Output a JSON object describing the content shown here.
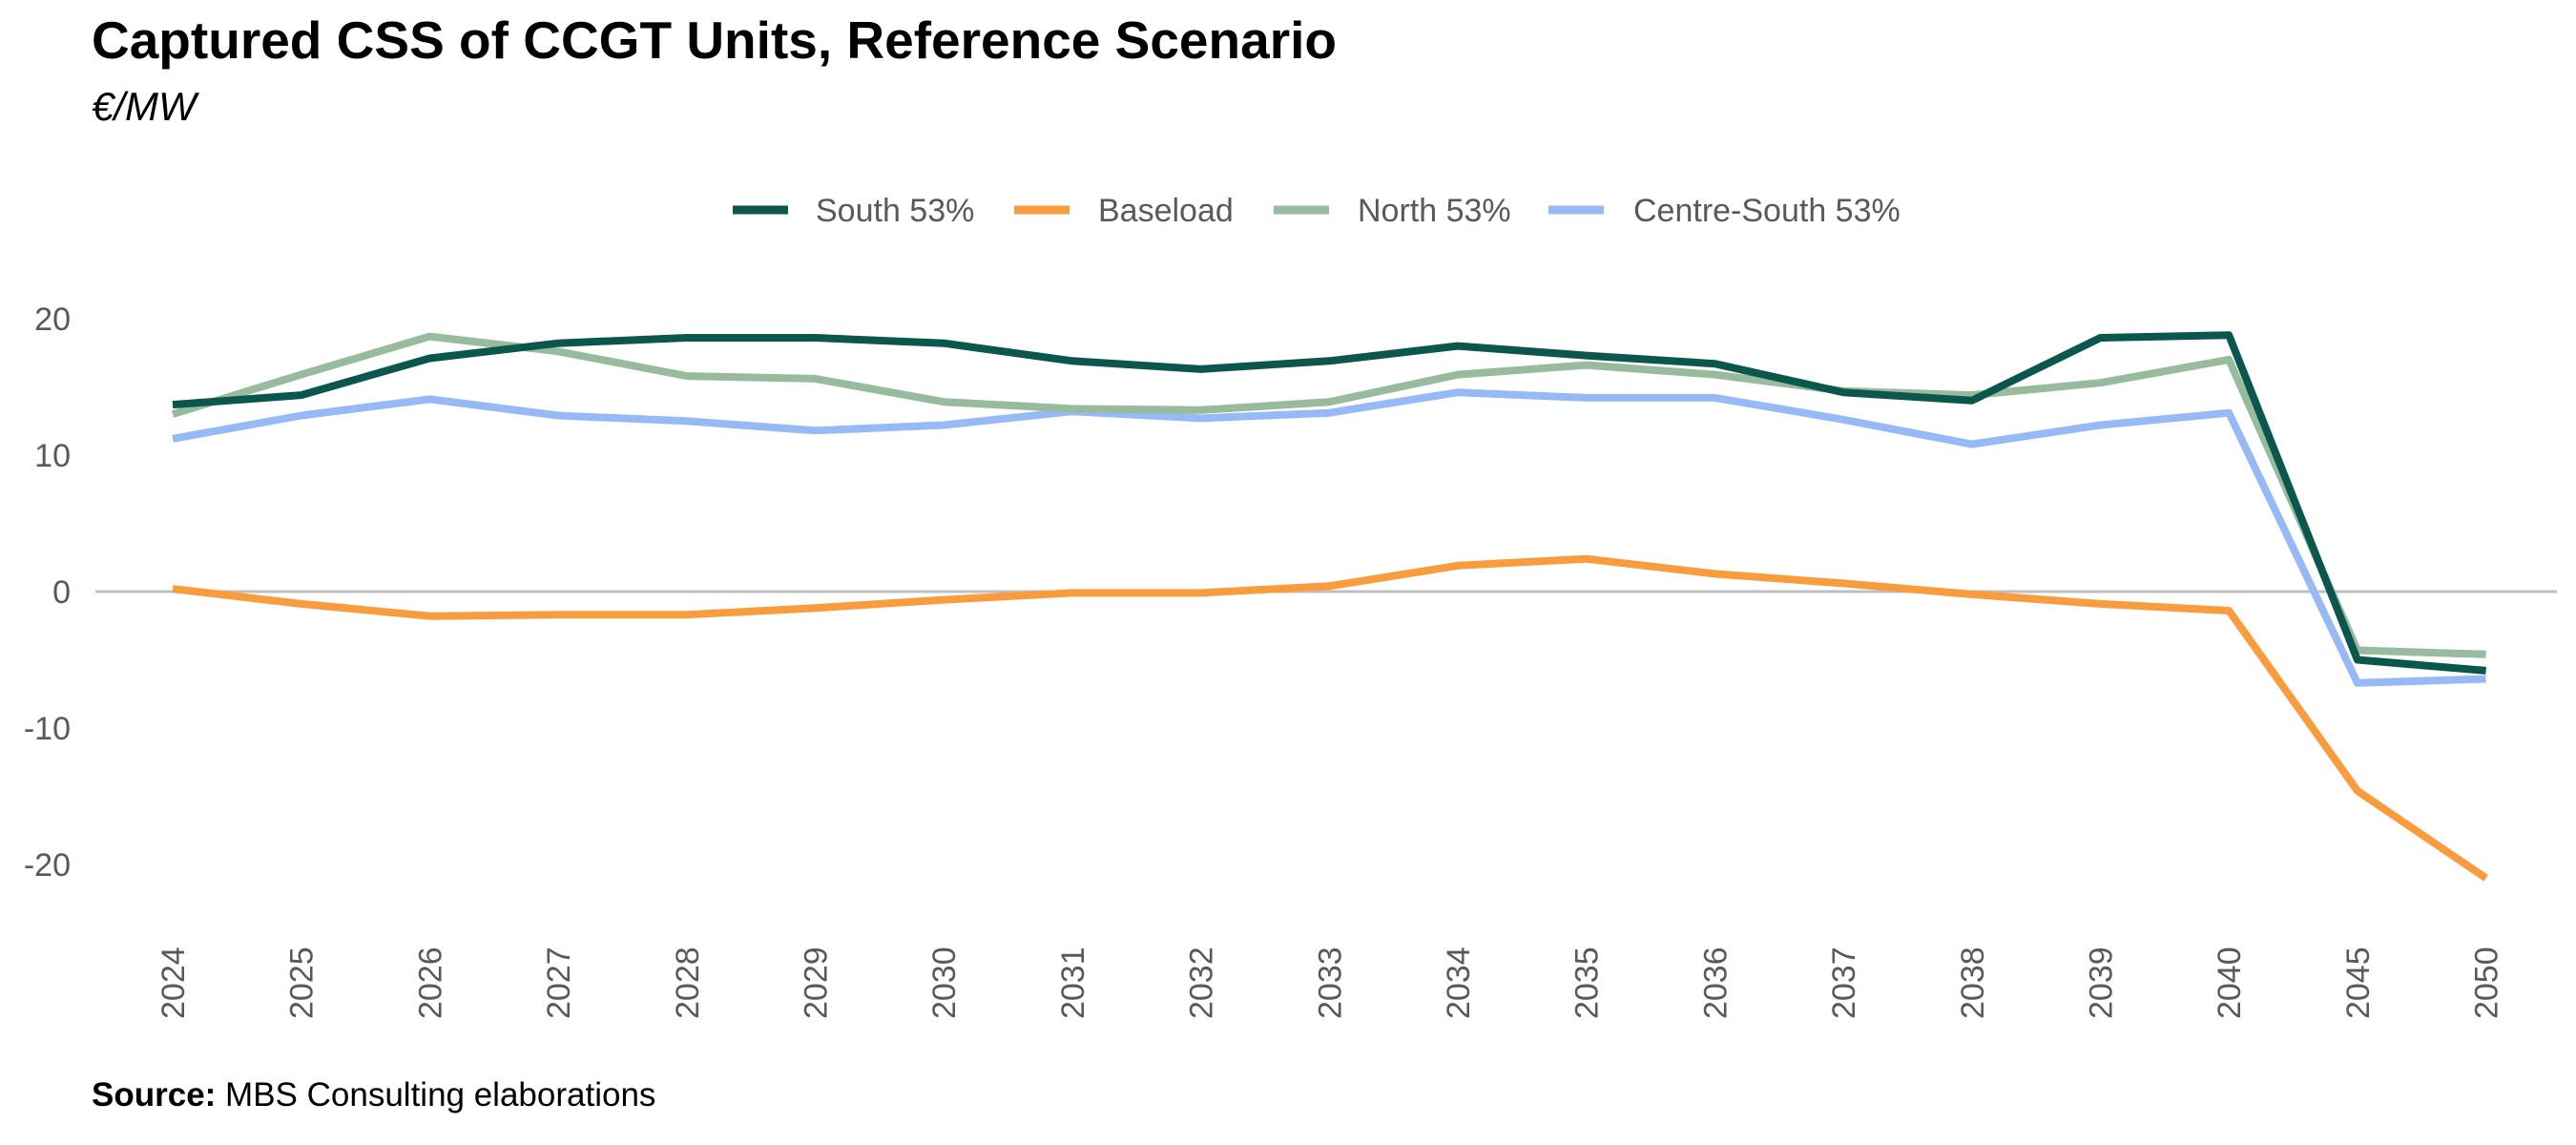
{
  "title": "Captured CSS of CCGT Units, Reference Scenario",
  "subtitle": "€/MW",
  "source": {
    "label": "Source:",
    "text": "MBS Consulting elaborations"
  },
  "chart_data": {
    "type": "line",
    "title": "Captured CSS of CCGT Units, Reference Scenario",
    "subtitle": "€/MW",
    "xlabel": "",
    "ylabel": "",
    "categories": [
      "2024",
      "2025",
      "2026",
      "2027",
      "2028",
      "2029",
      "2030",
      "2031",
      "2032",
      "2033",
      "2034",
      "2035",
      "2036",
      "2037",
      "2038",
      "2039",
      "2040",
      "2045",
      "2050"
    ],
    "ylim": [
      -25,
      25
    ],
    "yticks": [
      -20,
      -10,
      0,
      10,
      20
    ],
    "grid": false,
    "zero_line": true,
    "legend_position": "top-center",
    "series": [
      {
        "name": "South 53%",
        "color": "#0B564D",
        "values": [
          13.7,
          14.4,
          17.1,
          18.2,
          18.6,
          18.6,
          18.2,
          16.9,
          16.3,
          16.9,
          18.0,
          17.3,
          16.7,
          14.6,
          14.0,
          18.6,
          18.8,
          -5.0,
          -5.8
        ]
      },
      {
        "name": "Baseload",
        "color": "#F89C3D",
        "values": [
          0.2,
          -0.9,
          -1.8,
          -1.7,
          -1.7,
          -1.2,
          -0.6,
          -0.1,
          -0.1,
          0.4,
          1.9,
          2.4,
          1.3,
          0.6,
          -0.2,
          -0.9,
          -1.4,
          -14.6,
          -21.0
        ]
      },
      {
        "name": "North 53%",
        "color": "#98BB9E",
        "values": [
          13.0,
          15.9,
          18.7,
          17.6,
          15.8,
          15.6,
          13.9,
          13.4,
          13.3,
          13.9,
          15.9,
          16.6,
          15.9,
          14.7,
          14.4,
          15.3,
          17.0,
          -4.3,
          -4.6
        ]
      },
      {
        "name": "Centre-South 53%",
        "color": "#97BAF6",
        "values": [
          11.2,
          12.9,
          14.1,
          12.9,
          12.5,
          11.8,
          12.2,
          13.2,
          12.7,
          13.1,
          14.6,
          14.2,
          14.2,
          12.6,
          10.8,
          12.2,
          13.1,
          -6.7,
          -6.4
        ]
      }
    ]
  }
}
